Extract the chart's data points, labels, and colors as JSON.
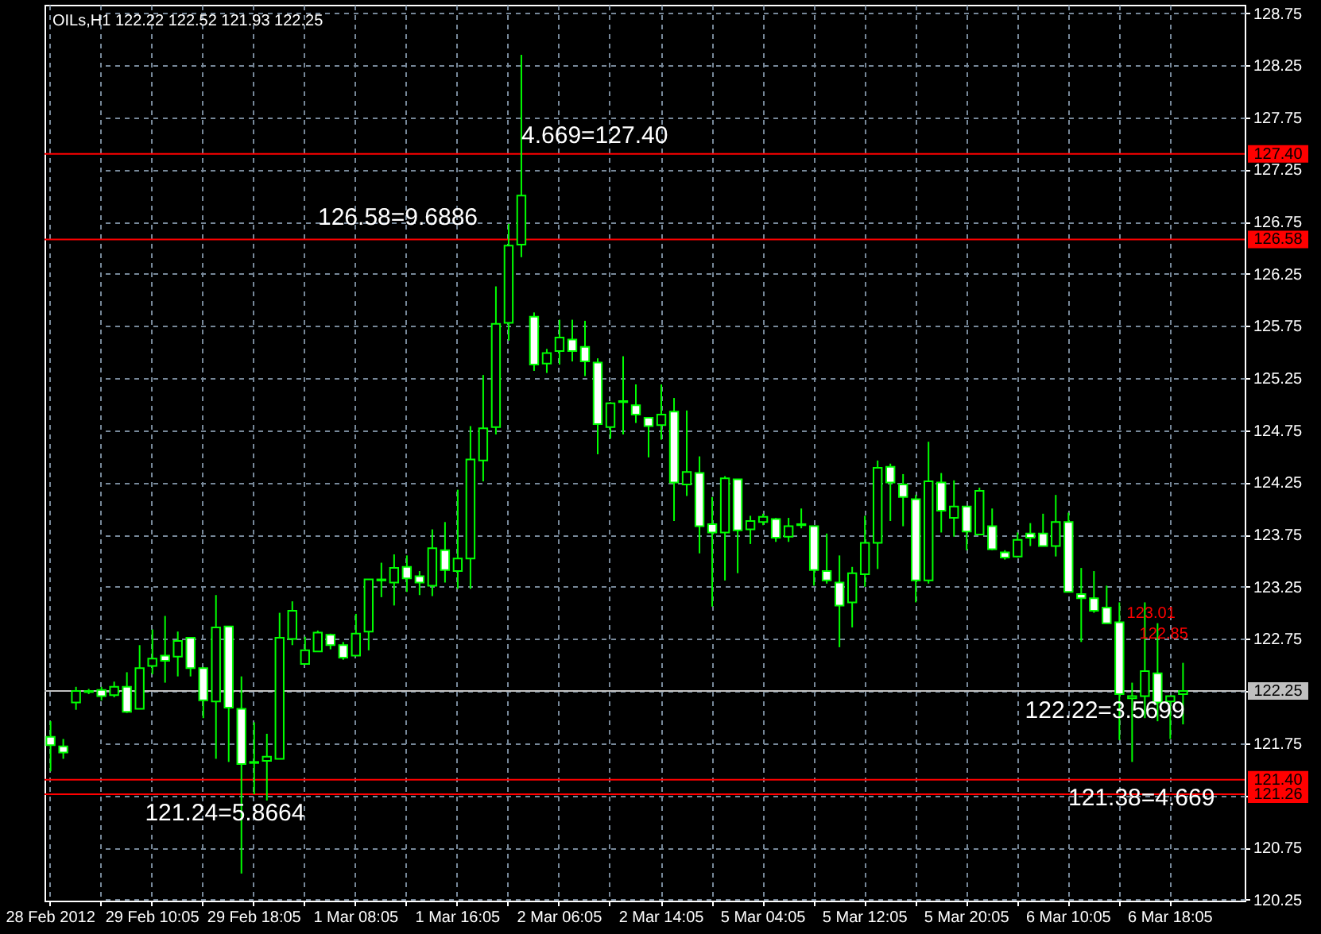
{
  "chart_data": {
    "type": "candlestick",
    "title": "OILs,H1  122.22 122.52 121.93 122.25",
    "categories": [
      "28 Feb 2012",
      null,
      null,
      null,
      null,
      null,
      null,
      null,
      "29 Feb 10:05",
      null,
      null,
      null,
      null,
      null,
      null,
      null,
      "29 Feb 18:05",
      null,
      null,
      null,
      null,
      null,
      null,
      null,
      "1 Mar 08:05",
      null,
      null,
      null,
      null,
      null,
      null,
      null,
      "1 Mar 16:05",
      null,
      null,
      null,
      null,
      null,
      null,
      null,
      "2 Mar 06:05",
      null,
      null,
      null,
      null,
      null,
      null,
      null,
      "2 Mar 14:05",
      null,
      null,
      null,
      null,
      null,
      null,
      null,
      "5 Mar 04:05",
      null,
      null,
      null,
      null,
      null,
      null,
      null,
      "5 Mar 12:05",
      null,
      null,
      null,
      null,
      null,
      null,
      null,
      "5 Mar 20:05",
      null,
      null,
      null,
      null,
      null,
      null,
      null,
      "6 Mar 10:05",
      null,
      null,
      null,
      null,
      null,
      null,
      null,
      "6 Mar 18:05",
      null
    ],
    "ohlc": [
      [
        121.81,
        121.96,
        121.48,
        121.73
      ],
      [
        121.72,
        121.79,
        121.6,
        121.66
      ],
      [
        122.14,
        122.29,
        122.07,
        122.25
      ],
      [
        122.24,
        122.27,
        122.22,
        122.25
      ],
      [
        122.26,
        122.29,
        122.16,
        122.2
      ],
      [
        122.21,
        122.34,
        122.19,
        122.29
      ],
      [
        122.29,
        122.43,
        122.04,
        122.05
      ],
      [
        122.08,
        122.69,
        122.08,
        122.47
      ],
      [
        122.49,
        122.84,
        122.41,
        122.56
      ],
      [
        122.59,
        122.97,
        122.33,
        122.54
      ],
      [
        122.58,
        122.82,
        122.39,
        122.73
      ],
      [
        122.76,
        122.76,
        122.39,
        122.47
      ],
      [
        122.47,
        122.48,
        121.99,
        122.16
      ],
      [
        122.15,
        123.17,
        121.6,
        122.86
      ],
      [
        122.87,
        122.87,
        121.57,
        122.09
      ],
      [
        122.08,
        122.39,
        120.5,
        121.55
      ],
      [
        121.56,
        121.95,
        121.26,
        121.57
      ],
      [
        121.58,
        121.84,
        121.2,
        121.62
      ],
      [
        121.6,
        123.0,
        121.6,
        122.76
      ],
      [
        122.75,
        123.11,
        122.69,
        123.02
      ],
      [
        122.51,
        122.77,
        122.51,
        122.64
      ],
      [
        122.63,
        122.83,
        122.63,
        122.81
      ],
      [
        122.79,
        122.8,
        122.65,
        122.69
      ],
      [
        122.69,
        122.72,
        122.55,
        122.57
      ],
      [
        122.59,
        122.99,
        122.59,
        122.8
      ],
      [
        122.82,
        123.32,
        122.64,
        123.32
      ],
      [
        123.31,
        123.48,
        123.15,
        123.32
      ],
      [
        123.29,
        123.56,
        123.07,
        123.43
      ],
      [
        123.44,
        123.55,
        123.2,
        123.33
      ],
      [
        123.35,
        123.4,
        123.17,
        123.29
      ],
      [
        123.26,
        123.8,
        123.16,
        123.62
      ],
      [
        123.6,
        123.87,
        123.29,
        123.41
      ],
      [
        123.4,
        124.18,
        123.23,
        123.52
      ],
      [
        123.52,
        124.79,
        123.23,
        124.47
      ],
      [
        124.46,
        125.28,
        124.26,
        124.77
      ],
      [
        124.78,
        126.13,
        124.71,
        125.77
      ],
      [
        125.78,
        126.73,
        125.61,
        126.52
      ],
      [
        126.53,
        128.35,
        126.41,
        127.0
      ],
      [
        125.84,
        125.88,
        125.32,
        125.38
      ],
      [
        125.39,
        125.53,
        125.3,
        125.49
      ],
      [
        125.51,
        125.81,
        125.38,
        125.64
      ],
      [
        125.62,
        125.81,
        125.41,
        125.51
      ],
      [
        125.55,
        125.8,
        125.27,
        125.41
      ],
      [
        125.4,
        125.44,
        124.52,
        124.81
      ],
      [
        124.78,
        125.02,
        124.67,
        125.01
      ],
      [
        125.03,
        125.46,
        124.71,
        125.02
      ],
      [
        124.99,
        125.19,
        124.82,
        124.9
      ],
      [
        124.87,
        124.87,
        124.49,
        124.79
      ],
      [
        124.8,
        125.19,
        124.66,
        124.9
      ],
      [
        124.93,
        125.06,
        123.88,
        124.25
      ],
      [
        124.23,
        124.94,
        124.12,
        124.35
      ],
      [
        124.34,
        124.5,
        123.57,
        123.83
      ],
      [
        123.85,
        124.11,
        123.06,
        123.77
      ],
      [
        123.77,
        124.31,
        123.31,
        124.29
      ],
      [
        124.28,
        124.28,
        123.38,
        123.79
      ],
      [
        123.8,
        123.93,
        123.66,
        123.88
      ],
      [
        123.87,
        123.95,
        123.84,
        123.92
      ],
      [
        123.9,
        123.91,
        123.68,
        123.72
      ],
      [
        123.73,
        123.91,
        123.68,
        123.83
      ],
      [
        123.84,
        124.0,
        123.81,
        123.85
      ],
      [
        123.83,
        123.83,
        123.26,
        123.41
      ],
      [
        123.4,
        123.76,
        123.28,
        123.31
      ],
      [
        123.29,
        123.55,
        122.67,
        123.07
      ],
      [
        123.1,
        123.44,
        122.86,
        123.38
      ],
      [
        123.37,
        123.93,
        123.25,
        123.67
      ],
      [
        123.67,
        124.46,
        123.42,
        124.39
      ],
      [
        124.4,
        124.43,
        123.88,
        124.25
      ],
      [
        124.23,
        124.33,
        123.83,
        124.11
      ],
      [
        124.09,
        124.13,
        123.1,
        123.31
      ],
      [
        123.31,
        124.64,
        123.28,
        124.26
      ],
      [
        124.25,
        124.34,
        123.77,
        123.98
      ],
      [
        123.91,
        124.27,
        123.73,
        124.02
      ],
      [
        124.02,
        124.02,
        123.6,
        123.78
      ],
      [
        123.75,
        124.2,
        123.75,
        124.17
      ],
      [
        123.83,
        124.0,
        123.6,
        123.61
      ],
      [
        123.58,
        123.6,
        123.51,
        123.53
      ],
      [
        123.54,
        123.77,
        123.53,
        123.7
      ],
      [
        123.76,
        123.86,
        123.64,
        123.72
      ],
      [
        123.76,
        123.95,
        123.64,
        123.64
      ],
      [
        123.64,
        124.13,
        123.54,
        123.87
      ],
      [
        123.87,
        123.96,
        123.2,
        123.2
      ],
      [
        123.18,
        123.43,
        122.72,
        123.14
      ],
      [
        123.14,
        123.4,
        123.0,
        123.02
      ],
      [
        123.05,
        123.26,
        122.9,
        122.9
      ],
      [
        122.91,
        123.1,
        121.78,
        122.22
      ],
      [
        122.18,
        122.33,
        121.57,
        122.2
      ],
      [
        122.2,
        123.1,
        121.99,
        122.44
      ],
      [
        122.42,
        122.9,
        121.96,
        122.14
      ],
      [
        122.15,
        122.2,
        121.79,
        122.2
      ],
      [
        122.22,
        122.52,
        121.93,
        122.25
      ]
    ],
    "color": "#00ff00",
    "ylim": [
      120.24,
      128.83
    ],
    "yticks": [
      120.25,
      120.75,
      {
        "value": 121.25,
        "label": null
      },
      121.75,
      {
        "value": 122.25,
        "label": null
      },
      122.75,
      123.25,
      123.75,
      124.25,
      124.75,
      125.25,
      125.75,
      126.25,
      126.75,
      127.25,
      127.75,
      128.25,
      128.75
    ],
    "grid": true,
    "ref_lines": [
      {
        "axis": "y",
        "value": 127.4,
        "label": "127.40",
        "color": "#ff0000"
      },
      {
        "axis": "y",
        "value": 126.58,
        "label": "126.58",
        "color": "#ff0000"
      },
      {
        "axis": "y",
        "value": 122.25,
        "label": "122.25",
        "color": "#c0c0c0"
      },
      {
        "axis": "y",
        "value": 121.4,
        "label": "121.40",
        "color": "#ff0000"
      },
      {
        "axis": "y",
        "value": 121.26,
        "label": "121.26",
        "color": "#ff0000"
      }
    ],
    "annotations": [
      {
        "text": "4.669=127.40",
        "y": 127.4
      },
      {
        "text": "126.58=9.6886",
        "y": 126.58
      },
      {
        "text": "122.22=3.5699",
        "y": 122.22
      },
      {
        "text": "121.38=4.669",
        "y": 121.38
      },
      {
        "text": "121.24=5.8664",
        "y": 121.24
      },
      "123.01",
      "122.85"
    ]
  }
}
